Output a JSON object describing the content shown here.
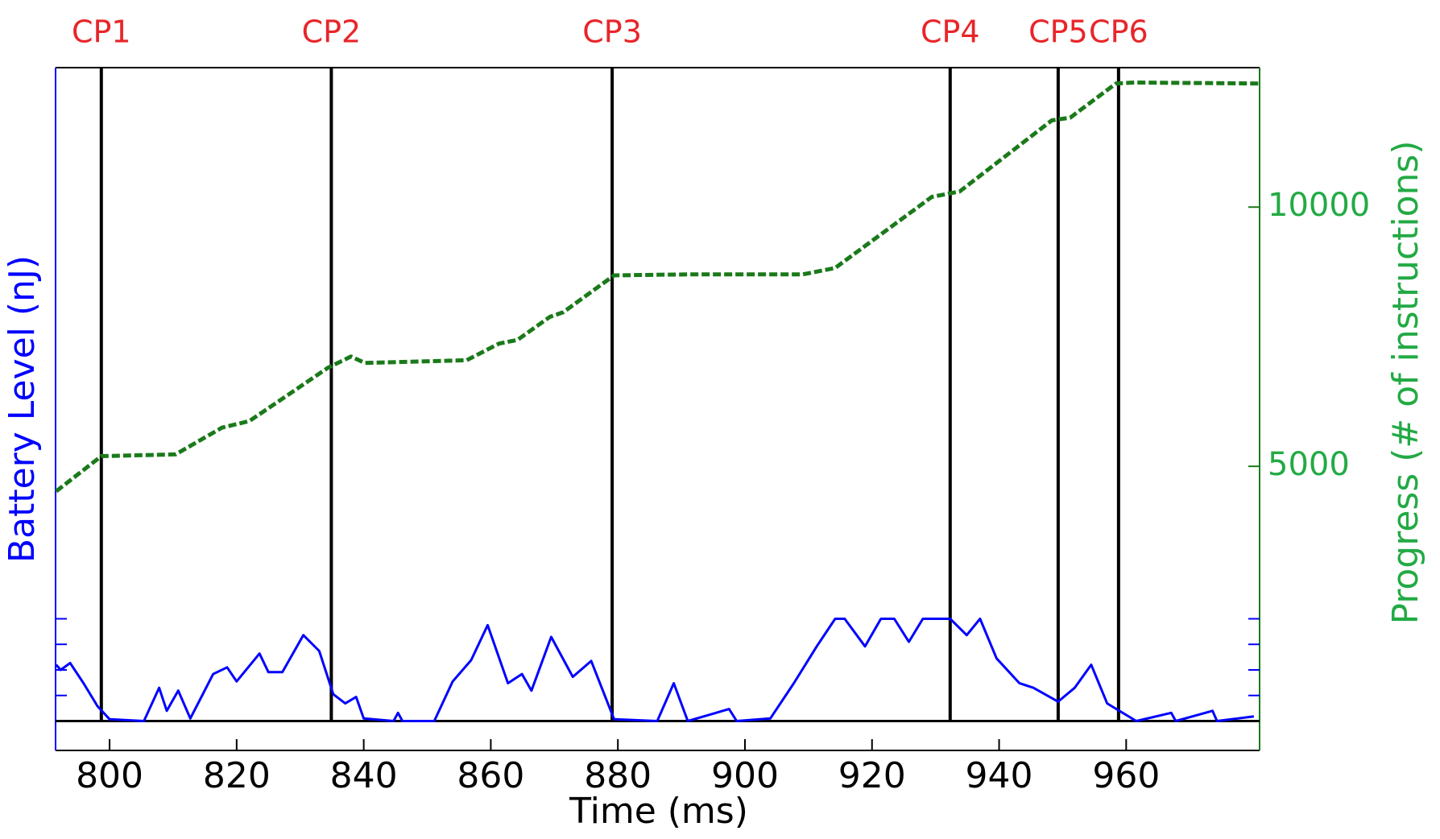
{
  "chart_data": {
    "type": "line",
    "x_label": "Time (ms)",
    "y_label": "Battery Level (nJ)",
    "y2_label": "Progress (# of instructions)",
    "xlim": [
      791.5,
      981
    ],
    "xticks": [
      800,
      820,
      840,
      860,
      880,
      900,
      920,
      940,
      960
    ],
    "ylim": [
      -11.5,
      255.6
    ],
    "yticks": [
      10,
      20,
      30,
      40
    ],
    "y2lim": [
      -480,
      12690
    ],
    "y2ticks": [
      5000,
      10000
    ],
    "checkpoints": {
      "labels": [
        "CP1",
        "CP2",
        "CP3",
        "CP4",
        "CP5",
        "CP6"
      ],
      "x": [
        798.7,
        834.9,
        879.1,
        932.3,
        949.3,
        958.8
      ],
      "color": "#000000",
      "label_color": "#e8252a"
    },
    "series": [
      {
        "color": "#0000ff",
        "axis": "y",
        "style": "solid",
        "x": [
          791.6,
          792.3,
          793.8,
          795.9,
          798.1,
          800,
          805.4,
          807.8,
          809,
          810.8,
          812.7,
          816.3,
          818.5,
          820,
          823.6,
          825,
          827.2,
          830.5,
          833,
          835.2,
          837.1,
          838.8,
          840,
          844.7,
          845.4,
          846.1,
          851.1,
          854,
          856.9,
          859.5,
          862.7,
          864.9,
          866.4,
          869.5,
          872.9,
          875.8,
          879.4,
          886.2,
          888.8,
          891,
          897.5,
          898.7,
          904,
          907.7,
          911.3,
          914.2,
          915.7,
          918.9,
          921.4,
          923.5,
          925.8,
          928,
          932.3,
          934.9,
          937,
          939.6,
          943.2,
          945.4,
          949.3,
          951.9,
          954.5,
          957,
          961.6,
          967.1,
          967.8,
          973.6,
          974.3,
          980.1
        ],
        "values": [
          22,
          20,
          22.7,
          14.8,
          5.8,
          0.7,
          0,
          13,
          4,
          11.9,
          1,
          18.4,
          21,
          15.5,
          26.4,
          19.1,
          19.1,
          33.6,
          27.4,
          10.5,
          6.9,
          9.4,
          1,
          0,
          3.2,
          0,
          0,
          15.5,
          23.8,
          37.5,
          14.8,
          18.4,
          11.9,
          32.9,
          17.3,
          23.5,
          0.7,
          0,
          14.8,
          0,
          4.7,
          0,
          1,
          14.8,
          29.2,
          40,
          40,
          29.2,
          40,
          40,
          31,
          40,
          40,
          33.6,
          40,
          24.5,
          14.8,
          13,
          7.6,
          13,
          22,
          6.9,
          0,
          3.2,
          0,
          4,
          0,
          1.8
        ]
      },
      {
        "color": "#1a7a1a",
        "axis": "y2",
        "style": "dashed",
        "x": [
          791.6,
          798.7,
          810.4,
          817.7,
          822.0,
          834.4,
          838.0,
          840.2,
          856.2,
          861.3,
          864.2,
          869.3,
          871.4,
          879.4,
          891.0,
          909.1,
          914.2,
          929.4,
          933.8,
          948.3,
          951.2,
          958.4,
          961.3,
          980.9
        ],
        "values": [
          4520,
          5196,
          5231,
          5747,
          5872,
          6904,
          7117,
          6993,
          7046,
          7367,
          7438,
          7883,
          7972,
          8683,
          8701,
          8701,
          8826,
          10196,
          10302,
          11673,
          11726,
          12384,
          12402,
          12384
        ]
      }
    ]
  }
}
